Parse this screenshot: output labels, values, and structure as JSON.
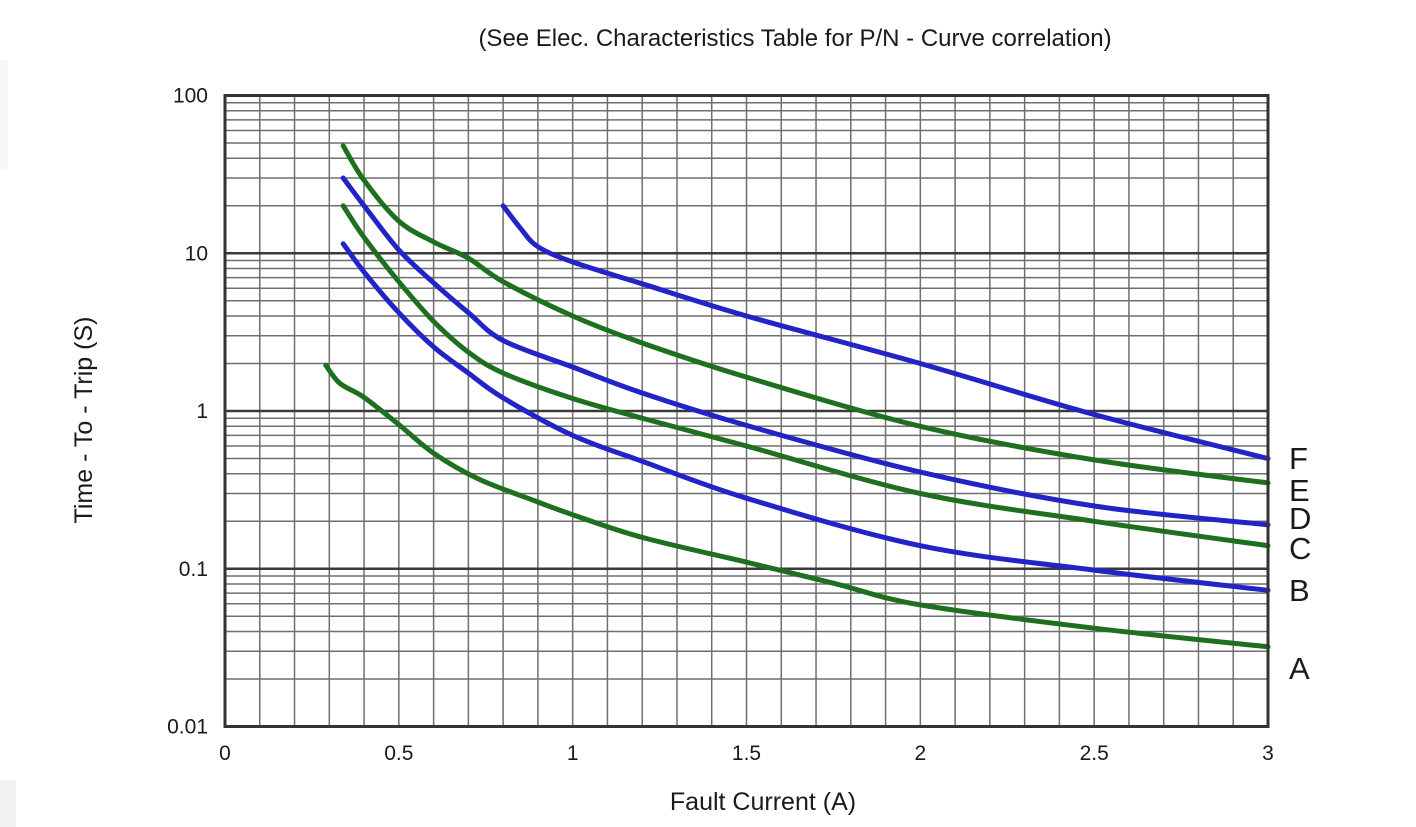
{
  "title": "(See Elec. Characteristics Table for P/N - Curve correlation)",
  "chart_data": {
    "type": "line",
    "title": "(See Elec. Characteristics Table for P/N - Curve correlation)",
    "xlabel": "Fault Current (A)",
    "ylabel": "Time - To - Trip (S)",
    "grid": true,
    "legend_position": "right-of-plot-inline-letters",
    "x_axis": {
      "scale": "linear",
      "min": 0,
      "max": 3,
      "minor_step": 0.1,
      "ticks": [
        0,
        0.5,
        1,
        1.5,
        2,
        2.5,
        3
      ],
      "tick_labels": [
        "0",
        "0.5",
        "1",
        "1.5",
        "2",
        "2.5",
        "3"
      ]
    },
    "y_axis": {
      "scale": "log",
      "min": 0.01,
      "max": 100,
      "ticks": [
        100,
        10,
        1,
        0.1,
        0.01
      ],
      "tick_labels": [
        "100",
        "10",
        "1",
        "0.1",
        "0.01"
      ]
    },
    "colors": {
      "curve_blue": "#2323c8",
      "curve_green": "#1e701e"
    },
    "series": [
      {
        "name": "A",
        "color": "#1e701e",
        "label_t": 0.0235,
        "points": [
          [
            0.29,
            1.95
          ],
          [
            0.33,
            1.5
          ],
          [
            0.4,
            1.22
          ],
          [
            0.5,
            0.82
          ],
          [
            0.6,
            0.54
          ],
          [
            0.73,
            0.37
          ],
          [
            0.9,
            0.265
          ],
          [
            1.0,
            0.22
          ],
          [
            1.2,
            0.158
          ],
          [
            1.5,
            0.11
          ],
          [
            1.75,
            0.081
          ],
          [
            2.0,
            0.059
          ],
          [
            2.5,
            0.042
          ],
          [
            3.0,
            0.032
          ]
        ]
      },
      {
        "name": "B",
        "color": "#2323c8",
        "label_t": 0.0733,
        "points": [
          [
            0.34,
            11.5
          ],
          [
            0.4,
            7.6
          ],
          [
            0.5,
            4.2
          ],
          [
            0.6,
            2.55
          ],
          [
            0.7,
            1.74
          ],
          [
            0.8,
            1.21
          ],
          [
            1.0,
            0.7
          ],
          [
            1.2,
            0.48
          ],
          [
            1.5,
            0.28
          ],
          [
            2.0,
            0.14
          ],
          [
            2.5,
            0.098
          ],
          [
            3.0,
            0.073
          ]
        ]
      },
      {
        "name": "C",
        "color": "#1e701e",
        "label_t": 0.135,
        "points": [
          [
            0.34,
            20
          ],
          [
            0.4,
            12.6
          ],
          [
            0.5,
            6.6
          ],
          [
            0.6,
            3.7
          ],
          [
            0.7,
            2.36
          ],
          [
            0.8,
            1.74
          ],
          [
            1.0,
            1.2
          ],
          [
            1.2,
            0.9
          ],
          [
            1.5,
            0.6
          ],
          [
            2.0,
            0.3
          ],
          [
            2.5,
            0.2
          ],
          [
            3.0,
            0.14
          ]
        ]
      },
      {
        "name": "D",
        "color": "#2323c8",
        "label_t": 0.21,
        "points": [
          [
            0.34,
            30
          ],
          [
            0.4,
            20
          ],
          [
            0.5,
            10.5
          ],
          [
            0.6,
            6.5
          ],
          [
            0.7,
            4.2
          ],
          [
            0.8,
            2.8
          ],
          [
            1.0,
            1.9
          ],
          [
            1.2,
            1.3
          ],
          [
            1.5,
            0.81
          ],
          [
            2.0,
            0.41
          ],
          [
            2.5,
            0.25
          ],
          [
            3.0,
            0.19
          ]
        ]
      },
      {
        "name": "E",
        "color": "#1e701e",
        "label_t": 0.316,
        "points": [
          [
            0.34,
            48
          ],
          [
            0.4,
            29
          ],
          [
            0.5,
            16
          ],
          [
            0.6,
            11.8
          ],
          [
            0.7,
            9.3
          ],
          [
            0.8,
            6.6
          ],
          [
            1.0,
            4.0
          ],
          [
            1.2,
            2.7
          ],
          [
            1.5,
            1.64
          ],
          [
            2.0,
            0.8
          ],
          [
            2.5,
            0.49
          ],
          [
            3.0,
            0.35
          ]
        ]
      },
      {
        "name": "F",
        "color": "#2323c8",
        "label_t": 0.504,
        "points": [
          [
            0.8,
            20
          ],
          [
            0.85,
            14.4
          ],
          [
            0.9,
            11
          ],
          [
            1.0,
            8.8
          ],
          [
            1.2,
            6.4
          ],
          [
            1.5,
            4.0
          ],
          [
            2.0,
            2.0
          ],
          [
            2.5,
            0.95
          ],
          [
            3.0,
            0.5
          ]
        ]
      }
    ]
  }
}
